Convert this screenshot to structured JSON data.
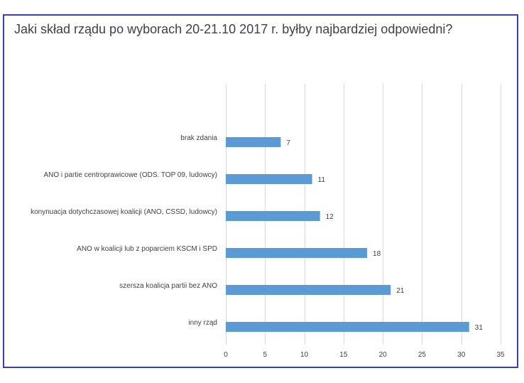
{
  "chart_data": {
    "type": "bar",
    "orientation": "horizontal",
    "title": "Jaki skład rządu po wyborach 20-21.10 2017 r. byłby najbardziej odpowiedni?",
    "categories": [
      "brak zdania",
      "ANO i partie centroprawicowe (ODS. TOP 09, ludowcy)",
      "konynuacja dotychczasowej koalicji (ANO, CSSD, ludowcy)",
      "ANO w koalicji lub z poparciem KSCM i SPD",
      "szersza koalicja partii bez ANO",
      "inny rząd"
    ],
    "values": [
      7,
      11,
      12,
      18,
      21,
      31
    ],
    "xlim": [
      0,
      35
    ],
    "xticks": [
      0,
      5,
      10,
      15,
      20,
      25,
      30,
      35
    ],
    "grid": "vertical",
    "data_labels": true,
    "bar_color": "#5b9bd5"
  }
}
